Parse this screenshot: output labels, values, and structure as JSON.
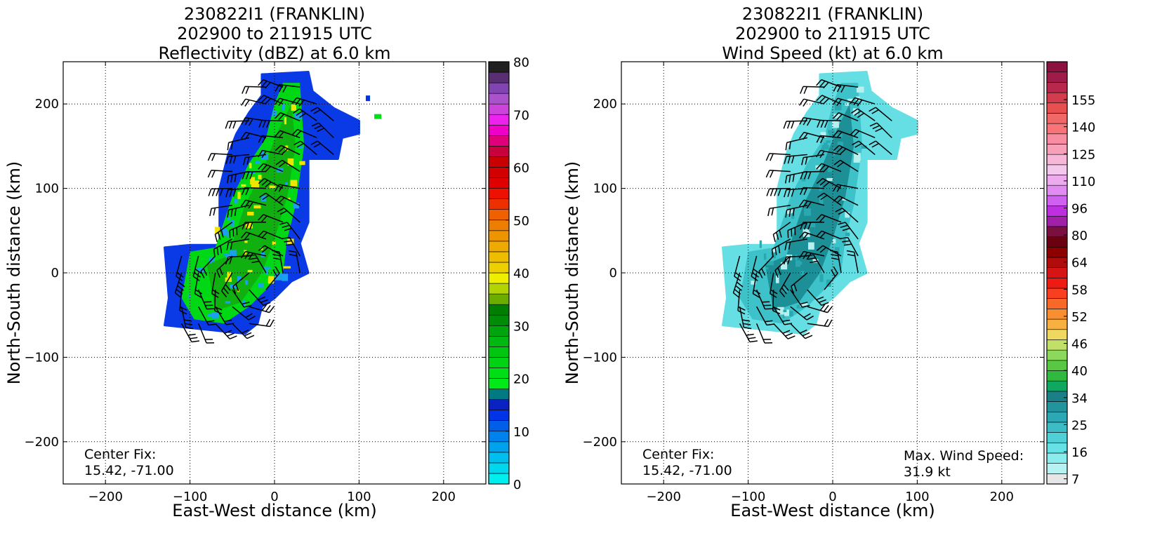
{
  "charts": [
    {
      "id": "left",
      "title": [
        "230822I1 (FRANKLIN)",
        "202900 to 211915 UTC",
        "Reflectivity (dBZ) at 6.0 km"
      ],
      "notes": [
        {
          "lines": [
            "Center Fix:",
            "15.42, -71.00"
          ],
          "pos": "bottom-left"
        }
      ],
      "colorbar": {
        "colors": [
          "#00eeee",
          "#00d6ee",
          "#00beee",
          "#00a2ee",
          "#0082ee",
          "#005ee8",
          "#0034e6",
          "#0a22c2",
          "#007a82",
          "#00ea18",
          "#00de16",
          "#00d214",
          "#00c612",
          "#00b810",
          "#00a40c",
          "#008c06",
          "#007e02",
          "#6cae00",
          "#b2d400",
          "#eeee00",
          "#eed000",
          "#eebc00",
          "#eeaa00",
          "#ee9400",
          "#ee7e00",
          "#ee6000",
          "#ee3000",
          "#ee1000",
          "#e00000",
          "#d20000",
          "#c80000",
          "#c8003e",
          "#e0007a",
          "#ee00c8",
          "#ee22ee",
          "#cc44dc",
          "#aa52cc",
          "#8244b2",
          "#5a2e72",
          "#202020"
        ],
        "tick_labels": [
          "0",
          "10",
          "20",
          "30",
          "40",
          "50",
          "60",
          "70",
          "80"
        ]
      }
    },
    {
      "id": "right",
      "title": [
        "230822I1 (FRANKLIN)",
        "202900 to 211915 UTC",
        "Wind Speed (kt) at 6.0 km"
      ],
      "notes": [
        {
          "lines": [
            "Center Fix:",
            "15.42, -71.00"
          ],
          "pos": "bottom-left"
        },
        {
          "lines": [
            "Max. Wind Speed:",
            "31.9 kt"
          ],
          "pos": "bottom-right"
        }
      ],
      "colorbar": {
        "colors": [
          "#e6e6e6",
          "#b6f2f2",
          "#8aecec",
          "#66e2e6",
          "#4ed0d6",
          "#3cbcc6",
          "#2ca8b4",
          "#22949e",
          "#1a8088",
          "#10a860",
          "#30b840",
          "#58c844",
          "#8cd85c",
          "#c0e068",
          "#eed860",
          "#f8b040",
          "#f88e30",
          "#f86828",
          "#f84020",
          "#ee1a14",
          "#d61414",
          "#b00c0c",
          "#8c0000",
          "#6a0010",
          "#7a1040",
          "#a020a8",
          "#bc30e0",
          "#d060f0",
          "#e08cf0",
          "#eeaaee",
          "#f4c8ec",
          "#f8b6d8",
          "#f8a0b8",
          "#f88ca0",
          "#f87478",
          "#f06868",
          "#e85050",
          "#d23c4c",
          "#b8284c",
          "#a01c48",
          "#8c1040"
        ],
        "tick_labels": [
          "7",
          "16",
          "25",
          "34",
          "40",
          "46",
          "52",
          "58",
          "64",
          "80",
          "96",
          "110",
          "125",
          "140",
          "155"
        ]
      }
    }
  ],
  "chart_data": [
    {
      "type": "heatmap",
      "title": "230822I1 (FRANKLIN) 202900 to 211915 UTC Reflectivity (dBZ) at 6.0 km",
      "xlabel": "East-West distance (km)",
      "ylabel": "North-South distance (km)",
      "xlim": [
        -250,
        250
      ],
      "ylim": [
        -250,
        250
      ],
      "xticks": [
        -200,
        -100,
        0,
        100,
        200
      ],
      "yticks": [
        -200,
        -100,
        0,
        100,
        200
      ],
      "grid": true,
      "colorbar_range": [
        0,
        80
      ],
      "colorbar_ticks": [
        0,
        10,
        20,
        30,
        40,
        50,
        60,
        70,
        80
      ],
      "center_fix": [
        15.42,
        -71.0
      ]
    },
    {
      "type": "heatmap",
      "title": "230822I1 (FRANKLIN) 202900 to 211915 UTC Wind Speed (kt) at 6.0 km",
      "xlabel": "East-West distance (km)",
      "ylabel": "North-South distance (km)",
      "xlim": [
        -250,
        250
      ],
      "ylim": [
        -250,
        250
      ],
      "xticks": [
        -200,
        -100,
        0,
        100,
        200
      ],
      "yticks": [
        -200,
        -100,
        0,
        100,
        200
      ],
      "grid": true,
      "colorbar_ticks": [
        7,
        16,
        25,
        34,
        40,
        46,
        52,
        58,
        64,
        80,
        96,
        110,
        125,
        140,
        155
      ],
      "center_fix": [
        15.42,
        -71.0
      ],
      "max_wind_speed_kt": 31.9
    }
  ]
}
